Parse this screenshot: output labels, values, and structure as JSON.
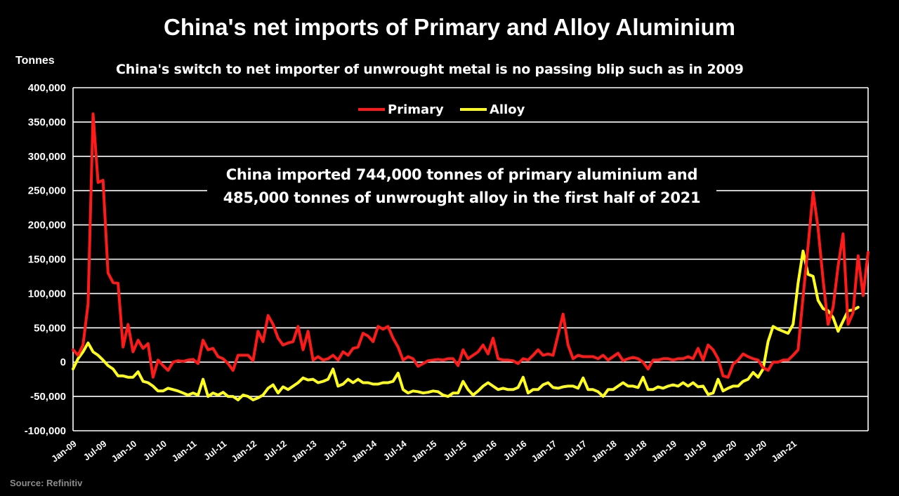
{
  "title": "China's net imports of Primary and Alloy Aluminium",
  "subtitle": "China's switch to net importer of unwrought metal is no passing blip such as in 2009",
  "source": "Source: Refinitiv",
  "colors": {
    "primary": "#ff1a1a",
    "alloy": "#ffff1a",
    "grid": "#ffffff",
    "background": "#000000"
  },
  "chart_data": {
    "type": "line",
    "ylabel": "Tonnes",
    "ylim": [
      -100000,
      400000
    ],
    "yticks": [
      -100000,
      -50000,
      0,
      50000,
      100000,
      150000,
      200000,
      250000,
      300000,
      350000,
      400000
    ],
    "ytick_labels": [
      "-100,000",
      "-50,000",
      "0",
      "50,000",
      "100,000",
      "150,000",
      "200,000",
      "250,000",
      "300,000",
      "350,000",
      "400,000"
    ],
    "xtick_labels": [
      "Jan-09",
      "Jul-09",
      "Jan-10",
      "Jul-10",
      "Jan-11",
      "Jul-11",
      "Jan-12",
      "Jul-12",
      "Jan-13",
      "Jul-13",
      "Jan-14",
      "Jul-14",
      "Jan-15",
      "Jul-15",
      "Jan-16",
      "Jul-16",
      "Jan-17",
      "Jul-17",
      "Jan-18",
      "Jul-18",
      "Jan-19",
      "Jul-19",
      "Jan-20",
      "Jul-20",
      "Jan-21"
    ],
    "x_start": "Jan-09",
    "x_end": "Jun-21",
    "legend": {
      "placement": "top-center"
    },
    "grid": true,
    "annotation": [
      "China imported 744,000 tonnes of primary aluminium and",
      "485,000 tonnes of unwrought alloy in the first half of 2021"
    ],
    "series": [
      {
        "name": "Primary",
        "values": [
          18000,
          10000,
          25000,
          85000,
          362000,
          262000,
          265000,
          130000,
          116000,
          115000,
          22000,
          55000,
          15000,
          32000,
          20000,
          27000,
          -22000,
          3000,
          -5000,
          -12000,
          0,
          2000,
          1000,
          3000,
          4000,
          -2000,
          32000,
          18000,
          20000,
          8000,
          5000,
          -2000,
          -12000,
          10000,
          10000,
          10000,
          2000,
          45000,
          30000,
          68000,
          55000,
          35000,
          25000,
          28000,
          30000,
          52000,
          18000,
          45000,
          3000,
          8000,
          3000,
          5000,
          10000,
          3000,
          15000,
          10000,
          20000,
          22000,
          42000,
          38000,
          30000,
          52000,
          48000,
          52000,
          35000,
          22000,
          3000,
          8000,
          5000,
          -6000,
          -2000,
          2000,
          3000,
          4000,
          3000,
          5000,
          5000,
          -5000,
          18000,
          5000,
          10000,
          15000,
          25000,
          12000,
          35000,
          5000,
          3000,
          3000,
          2000,
          -2000,
          5000,
          3000,
          10000,
          18000,
          10000,
          12000,
          10000,
          40000,
          70000,
          25000,
          5000,
          10000,
          8000,
          8000,
          8000,
          5000,
          10000,
          3000,
          8000,
          13000,
          2000,
          5000,
          7000,
          5000,
          0,
          -10000,
          3000,
          3000,
          5000,
          5000,
          3000,
          5000,
          5000,
          8000,
          5000,
          20000,
          3000,
          25000,
          18000,
          5000,
          -20000,
          -22000,
          -3000,
          3000,
          12000,
          8000,
          5000,
          3000,
          -8000,
          -12000,
          0,
          0,
          3000,
          3000,
          10000,
          18000,
          95000,
          170000,
          248000,
          195000,
          120000,
          55000,
          80000,
          140000,
          187000,
          55000,
          72000,
          155000,
          97000,
          160000
        ]
      },
      {
        "name": "Alloy",
        "values": [
          -10000,
          5000,
          15000,
          28000,
          15000,
          10000,
          3000,
          -5000,
          -10000,
          -20000,
          -20000,
          -22000,
          -22000,
          -14000,
          -28000,
          -30000,
          -35000,
          -42000,
          -42000,
          -38000,
          -40000,
          -42000,
          -45000,
          -48000,
          -45000,
          -48000,
          -25000,
          -50000,
          -45000,
          -48000,
          -44000,
          -50000,
          -50000,
          -55000,
          -48000,
          -50000,
          -55000,
          -52000,
          -48000,
          -38000,
          -33000,
          -45000,
          -36000,
          -40000,
          -35000,
          -30000,
          -23000,
          -26000,
          -25000,
          -30000,
          -28000,
          -25000,
          -10000,
          -35000,
          -32000,
          -25000,
          -30000,
          -25000,
          -30000,
          -30000,
          -32000,
          -32000,
          -30000,
          -30000,
          -28000,
          -16000,
          -40000,
          -45000,
          -42000,
          -43000,
          -45000,
          -44000,
          -42000,
          -43000,
          -48000,
          -50000,
          -45000,
          -45000,
          -28000,
          -40000,
          -48000,
          -42000,
          -35000,
          -30000,
          -35000,
          -40000,
          -38000,
          -40000,
          -40000,
          -37000,
          -22000,
          -45000,
          -40000,
          -40000,
          -33000,
          -30000,
          -37000,
          -38000,
          -36000,
          -35000,
          -35000,
          -38000,
          -23000,
          -40000,
          -40000,
          -43000,
          -50000,
          -40000,
          -40000,
          -35000,
          -30000,
          -35000,
          -35000,
          -37000,
          -22000,
          -40000,
          -40000,
          -36000,
          -38000,
          -35000,
          -33000,
          -35000,
          -30000,
          -35000,
          -30000,
          -36000,
          -35000,
          -47000,
          -45000,
          -25000,
          -42000,
          -38000,
          -35000,
          -35000,
          -28000,
          -25000,
          -15000,
          -22000,
          -10000,
          30000,
          52000,
          48000,
          45000,
          42000,
          55000,
          115000,
          162000,
          128000,
          125000,
          90000,
          78000,
          75000,
          65000,
          45000,
          60000,
          75000,
          76000,
          80000
        ]
      }
    ]
  }
}
